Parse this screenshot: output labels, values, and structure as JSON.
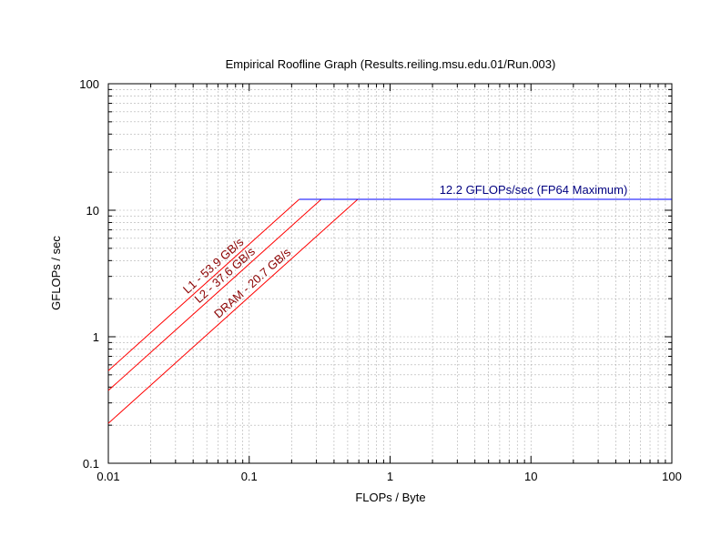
{
  "chart_data": {
    "type": "line",
    "title": "Empirical Roofline Graph (Results.reiling.msu.edu.01/Run.003)",
    "xlabel": "FLOPs / Byte",
    "ylabel": "GFLOPs / sec",
    "xscale": "log",
    "yscale": "log",
    "xlim": [
      0.01,
      100
    ],
    "ylim": [
      0.1,
      100
    ],
    "x_ticks": [
      "0.01",
      "0.1",
      "1",
      "10",
      "100"
    ],
    "y_ticks": [
      "0.1",
      "1",
      "10",
      "100"
    ],
    "grid": true,
    "compute_ceiling": {
      "label": "12.2 GFLOPs/sec (FP64 Maximum)",
      "gflops": 12.2,
      "color": "#0000ff"
    },
    "series": [
      {
        "name": "L1 - 53.9 GB/s",
        "bandwidth": 53.9,
        "color": "#ff0000"
      },
      {
        "name": "L2 - 37.6 GB/s",
        "bandwidth": 37.6,
        "color": "#ff0000"
      },
      {
        "name": "DRAM - 20.7 GB/s",
        "bandwidth": 20.7,
        "color": "#ff0000"
      }
    ]
  }
}
